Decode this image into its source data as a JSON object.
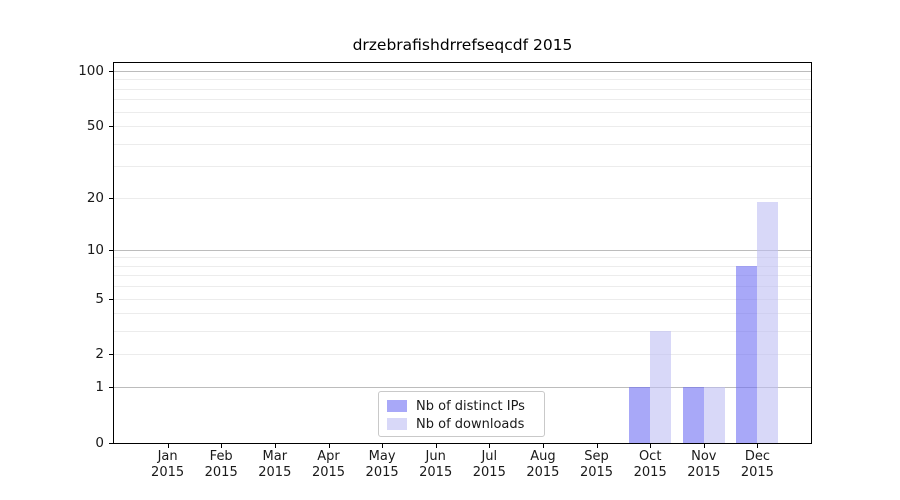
{
  "title": "drzebrafishdrrefseqcdf 2015",
  "chart_data": {
    "type": "bar",
    "title": "drzebrafishdrrefseqcdf 2015",
    "categories": [
      "Jan 2015",
      "Feb 2015",
      "Mar 2015",
      "Apr 2015",
      "May 2015",
      "Jun 2015",
      "Jul 2015",
      "Aug 2015",
      "Sep 2015",
      "Oct 2015",
      "Nov 2015",
      "Dec 2015"
    ],
    "series": [
      {
        "name": "Nb of distinct IPs",
        "color": "#6e6ef3",
        "alpha": 0.6,
        "values": [
          0,
          0,
          0,
          0,
          0,
          0,
          0,
          0,
          0,
          1,
          1,
          8
        ]
      },
      {
        "name": "Nb of downloads",
        "color": "#bebef3",
        "alpha": 0.6,
        "values": [
          0,
          0,
          0,
          0,
          0,
          0,
          0,
          0,
          0,
          3,
          1,
          19
        ]
      }
    ],
    "xlabel": "",
    "ylabel": "",
    "yscale": "log1p",
    "ylim": [
      0,
      110.5
    ],
    "yticks": [
      0,
      1,
      2,
      5,
      10,
      20,
      50,
      100
    ],
    "gridlines": {
      "major": [
        1,
        10,
        100
      ],
      "minor": [
        2,
        3,
        4,
        5,
        6,
        7,
        8,
        9,
        20,
        30,
        40,
        50,
        60,
        70,
        80,
        90
      ]
    },
    "grid": true,
    "legend_position": "lower center",
    "legend_entries": [
      "Nb of distinct IPs",
      "Nb of downloads"
    ]
  },
  "colors": {
    "background": "#ffffff",
    "spine": "#000000",
    "major_grid": "#bcbcbc",
    "minor_grid": "#ececec",
    "tick_label": "#1a1a1a",
    "legend_border": "#c9c9c9"
  }
}
